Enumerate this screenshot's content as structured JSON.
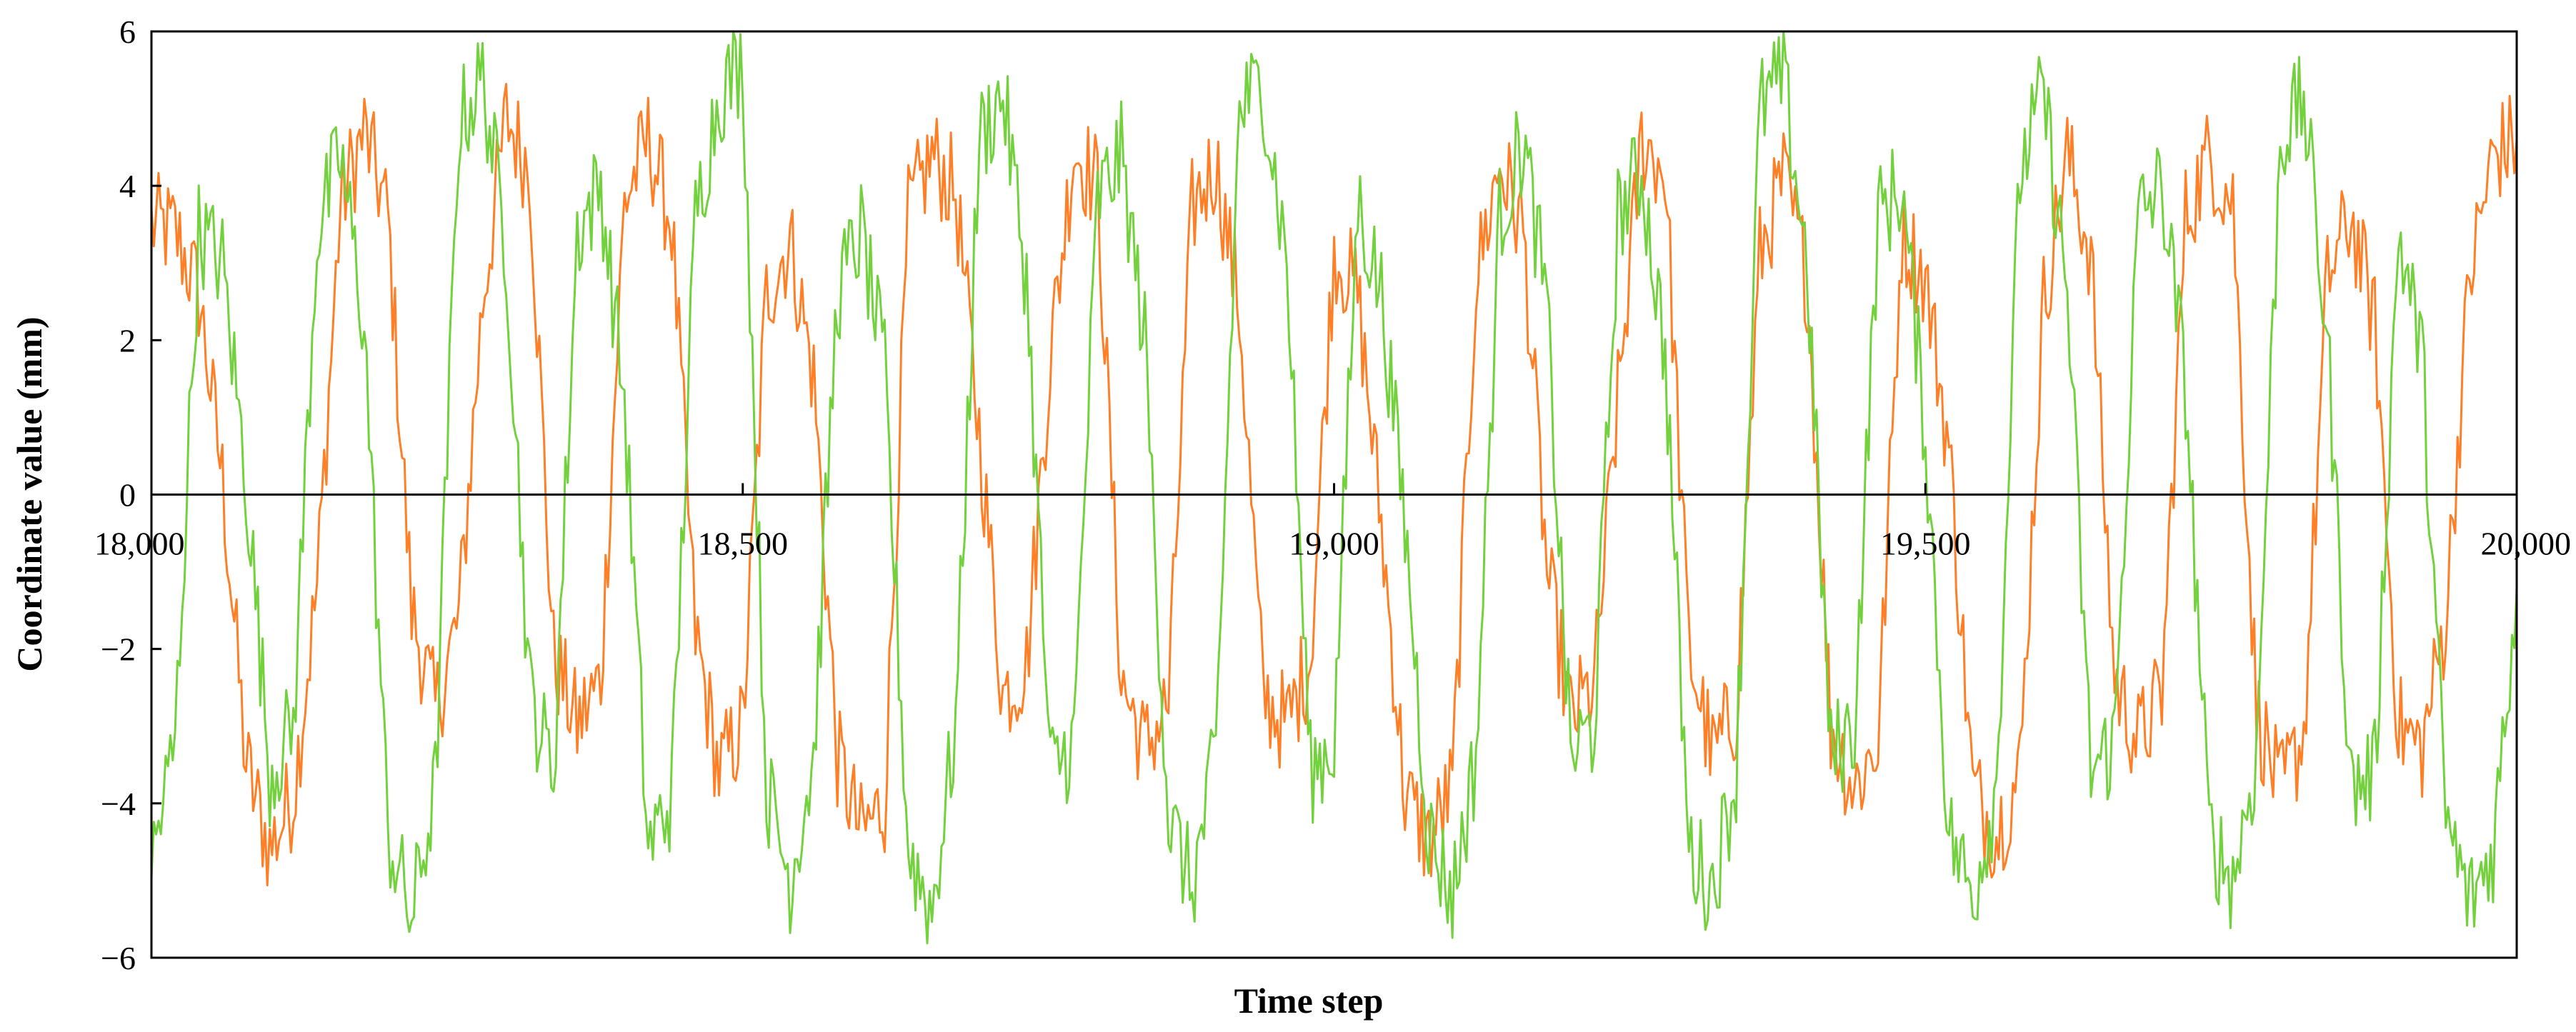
{
  "chart_data": {
    "type": "line",
    "title": "",
    "xlabel": "Time step",
    "ylabel": "Coordinate value (mm)",
    "xlim": [
      18000,
      20000
    ],
    "ylim": [
      -6,
      6
    ],
    "x_ticks": [
      {
        "value": 18000,
        "label": "18,000"
      },
      {
        "value": 18500,
        "label": "18,500"
      },
      {
        "value": 19000,
        "label": "19,000"
      },
      {
        "value": 19500,
        "label": "19,500"
      },
      {
        "value": 20000,
        "label": "20,000"
      }
    ],
    "y_ticks": [
      {
        "value": 6,
        "label": "6"
      },
      {
        "value": 4,
        "label": "4"
      },
      {
        "value": 2,
        "label": "2"
      },
      {
        "value": 0,
        "label": "0"
      },
      {
        "value": -2,
        "label": "−2"
      },
      {
        "value": -4,
        "label": "−4"
      },
      {
        "value": -6,
        "label": "−6"
      }
    ],
    "grid": false,
    "legend": "none",
    "series": [
      {
        "color": "#ff7f27",
        "x": [
          18000,
          18020,
          18040,
          18060,
          18080,
          18100,
          18120,
          18140,
          18160,
          18180,
          18200,
          18220,
          18240,
          18260,
          18280,
          18300,
          18320,
          18340,
          18360,
          18380,
          18400,
          18420,
          18440,
          18460,
          18480,
          18500,
          18520,
          18540,
          18560,
          18580,
          18600,
          18620,
          18640,
          18660,
          18680,
          18700,
          18720,
          18740,
          18760,
          18780,
          18800,
          18820,
          18840,
          18860,
          18880,
          18900,
          18920,
          18940,
          18960,
          18980,
          19000,
          19020,
          19040,
          19060,
          19080,
          19100,
          19120,
          19140,
          19160,
          19180,
          19200,
          19220,
          19240,
          19260,
          19280,
          19300,
          19320,
          19340,
          19360,
          19380,
          19400,
          19420,
          19440,
          19460,
          19480,
          19500,
          19520,
          19540,
          19560,
          19580,
          19600,
          19620,
          19640,
          19660,
          19680,
          19700,
          19720,
          19740,
          19760,
          19780,
          19800,
          19820,
          19840,
          19860,
          19880,
          19900,
          19920,
          19940,
          19960,
          19980,
          20000
        ],
        "y": [
          3.5,
          3.4,
          2.6,
          0.2,
          -3.5,
          -4.6,
          -3.9,
          -1.2,
          3.8,
          4.7,
          3.6,
          -1.5,
          -2.8,
          -1.6,
          2.5,
          4.9,
          4.2,
          -2.1,
          -3.0,
          -2.4,
          3.8,
          4.6,
          3.5,
          -1.8,
          -3.6,
          -3.0,
          2.6,
          3.3,
          1.5,
          -3.4,
          -4.4,
          -4.0,
          3.6,
          4.4,
          3.9,
          0.8,
          -2.6,
          -2.2,
          1.8,
          4.5,
          4.0,
          -2.4,
          -3.3,
          -2.7,
          3.7,
          4.3,
          2.4,
          -2.6,
          -3.0,
          -2.1,
          3.2,
          2.6,
          -0.4,
          -3.9,
          -4.5,
          -3.8,
          2.8,
          4.3,
          3.4,
          -1.0,
          -2.9,
          -2.5,
          1.2,
          4.6,
          4.2,
          -2.0,
          -3.4,
          -2.8,
          3.1,
          4.1,
          2.8,
          -3.0,
          -3.8,
          -3.2,
          3.4,
          2.8,
          0.6,
          -3.8,
          -4.4,
          -3.6,
          2.5,
          4.4,
          3.1,
          -2.4,
          -3.2,
          -2.6,
          3.6,
          4.4,
          3.8,
          -2.8,
          -3.9,
          -3.1,
          2.8,
          3.6,
          2.2,
          -3.0,
          -3.3,
          -1.6,
          2.8,
          4.4,
          4.6
        ]
      },
      {
        "color": "#73d13d",
        "x": [
          18000,
          18020,
          18040,
          18060,
          18080,
          18100,
          18120,
          18140,
          18160,
          18180,
          18200,
          18220,
          18240,
          18260,
          18280,
          18300,
          18320,
          18340,
          18360,
          18380,
          18400,
          18420,
          18440,
          18460,
          18480,
          18500,
          18520,
          18540,
          18560,
          18580,
          18600,
          18620,
          18640,
          18660,
          18680,
          18700,
          18720,
          18740,
          18760,
          18780,
          18800,
          18820,
          18840,
          18860,
          18880,
          18900,
          18920,
          18940,
          18960,
          18980,
          19000,
          19020,
          19040,
          19060,
          19080,
          19100,
          19120,
          19140,
          19160,
          19180,
          19200,
          19220,
          19240,
          19260,
          19280,
          19300,
          19320,
          19340,
          19360,
          19380,
          19400,
          19420,
          19440,
          19460,
          19480,
          19500,
          19520,
          19540,
          19560,
          19580,
          19600,
          19620,
          19640,
          19660,
          19680,
          19700,
          19720,
          19740,
          19760,
          19780,
          19800,
          19820,
          19840,
          19860,
          19880,
          19900,
          19920,
          19940,
          19960,
          19980,
          20000
        ],
        "y": [
          -4.8,
          -3.2,
          3.4,
          3.0,
          0.2,
          -3.6,
          -3.0,
          3.4,
          4.4,
          2.2,
          -4.4,
          -5.5,
          -3.8,
          4.8,
          5.4,
          3.2,
          -2.6,
          -3.6,
          3.4,
          4.0,
          1.2,
          -4.6,
          -3.9,
          3.6,
          5.2,
          5.6,
          -3.8,
          -5.0,
          -3.4,
          2.6,
          3.4,
          1.6,
          -4.6,
          -5.4,
          -3.0,
          4.6,
          5.2,
          2.8,
          -3.6,
          -3.2,
          3.8,
          4.4,
          2.0,
          -4.2,
          -5.1,
          -3.4,
          5.0,
          5.3,
          3.0,
          -3.6,
          -3.2,
          3.8,
          2.6,
          -0.4,
          -4.4,
          -5.2,
          -3.4,
          3.6,
          4.6,
          2.4,
          -3.4,
          -3.0,
          3.6,
          4.2,
          1.8,
          -4.6,
          -5.1,
          -3.6,
          5.0,
          5.4,
          3.0,
          -3.4,
          -3.0,
          3.6,
          4.0,
          0.8,
          -4.4,
          -5.2,
          -3.8,
          4.2,
          5.2,
          2.6,
          -3.6,
          -3.2,
          3.6,
          4.0,
          1.4,
          -4.4,
          -5.0,
          -3.4,
          4.6,
          5.1,
          2.0,
          -3.8,
          -3.6,
          3.4,
          1.8,
          -4.2,
          -5.3,
          -4.6,
          -1.2
        ]
      }
    ]
  }
}
